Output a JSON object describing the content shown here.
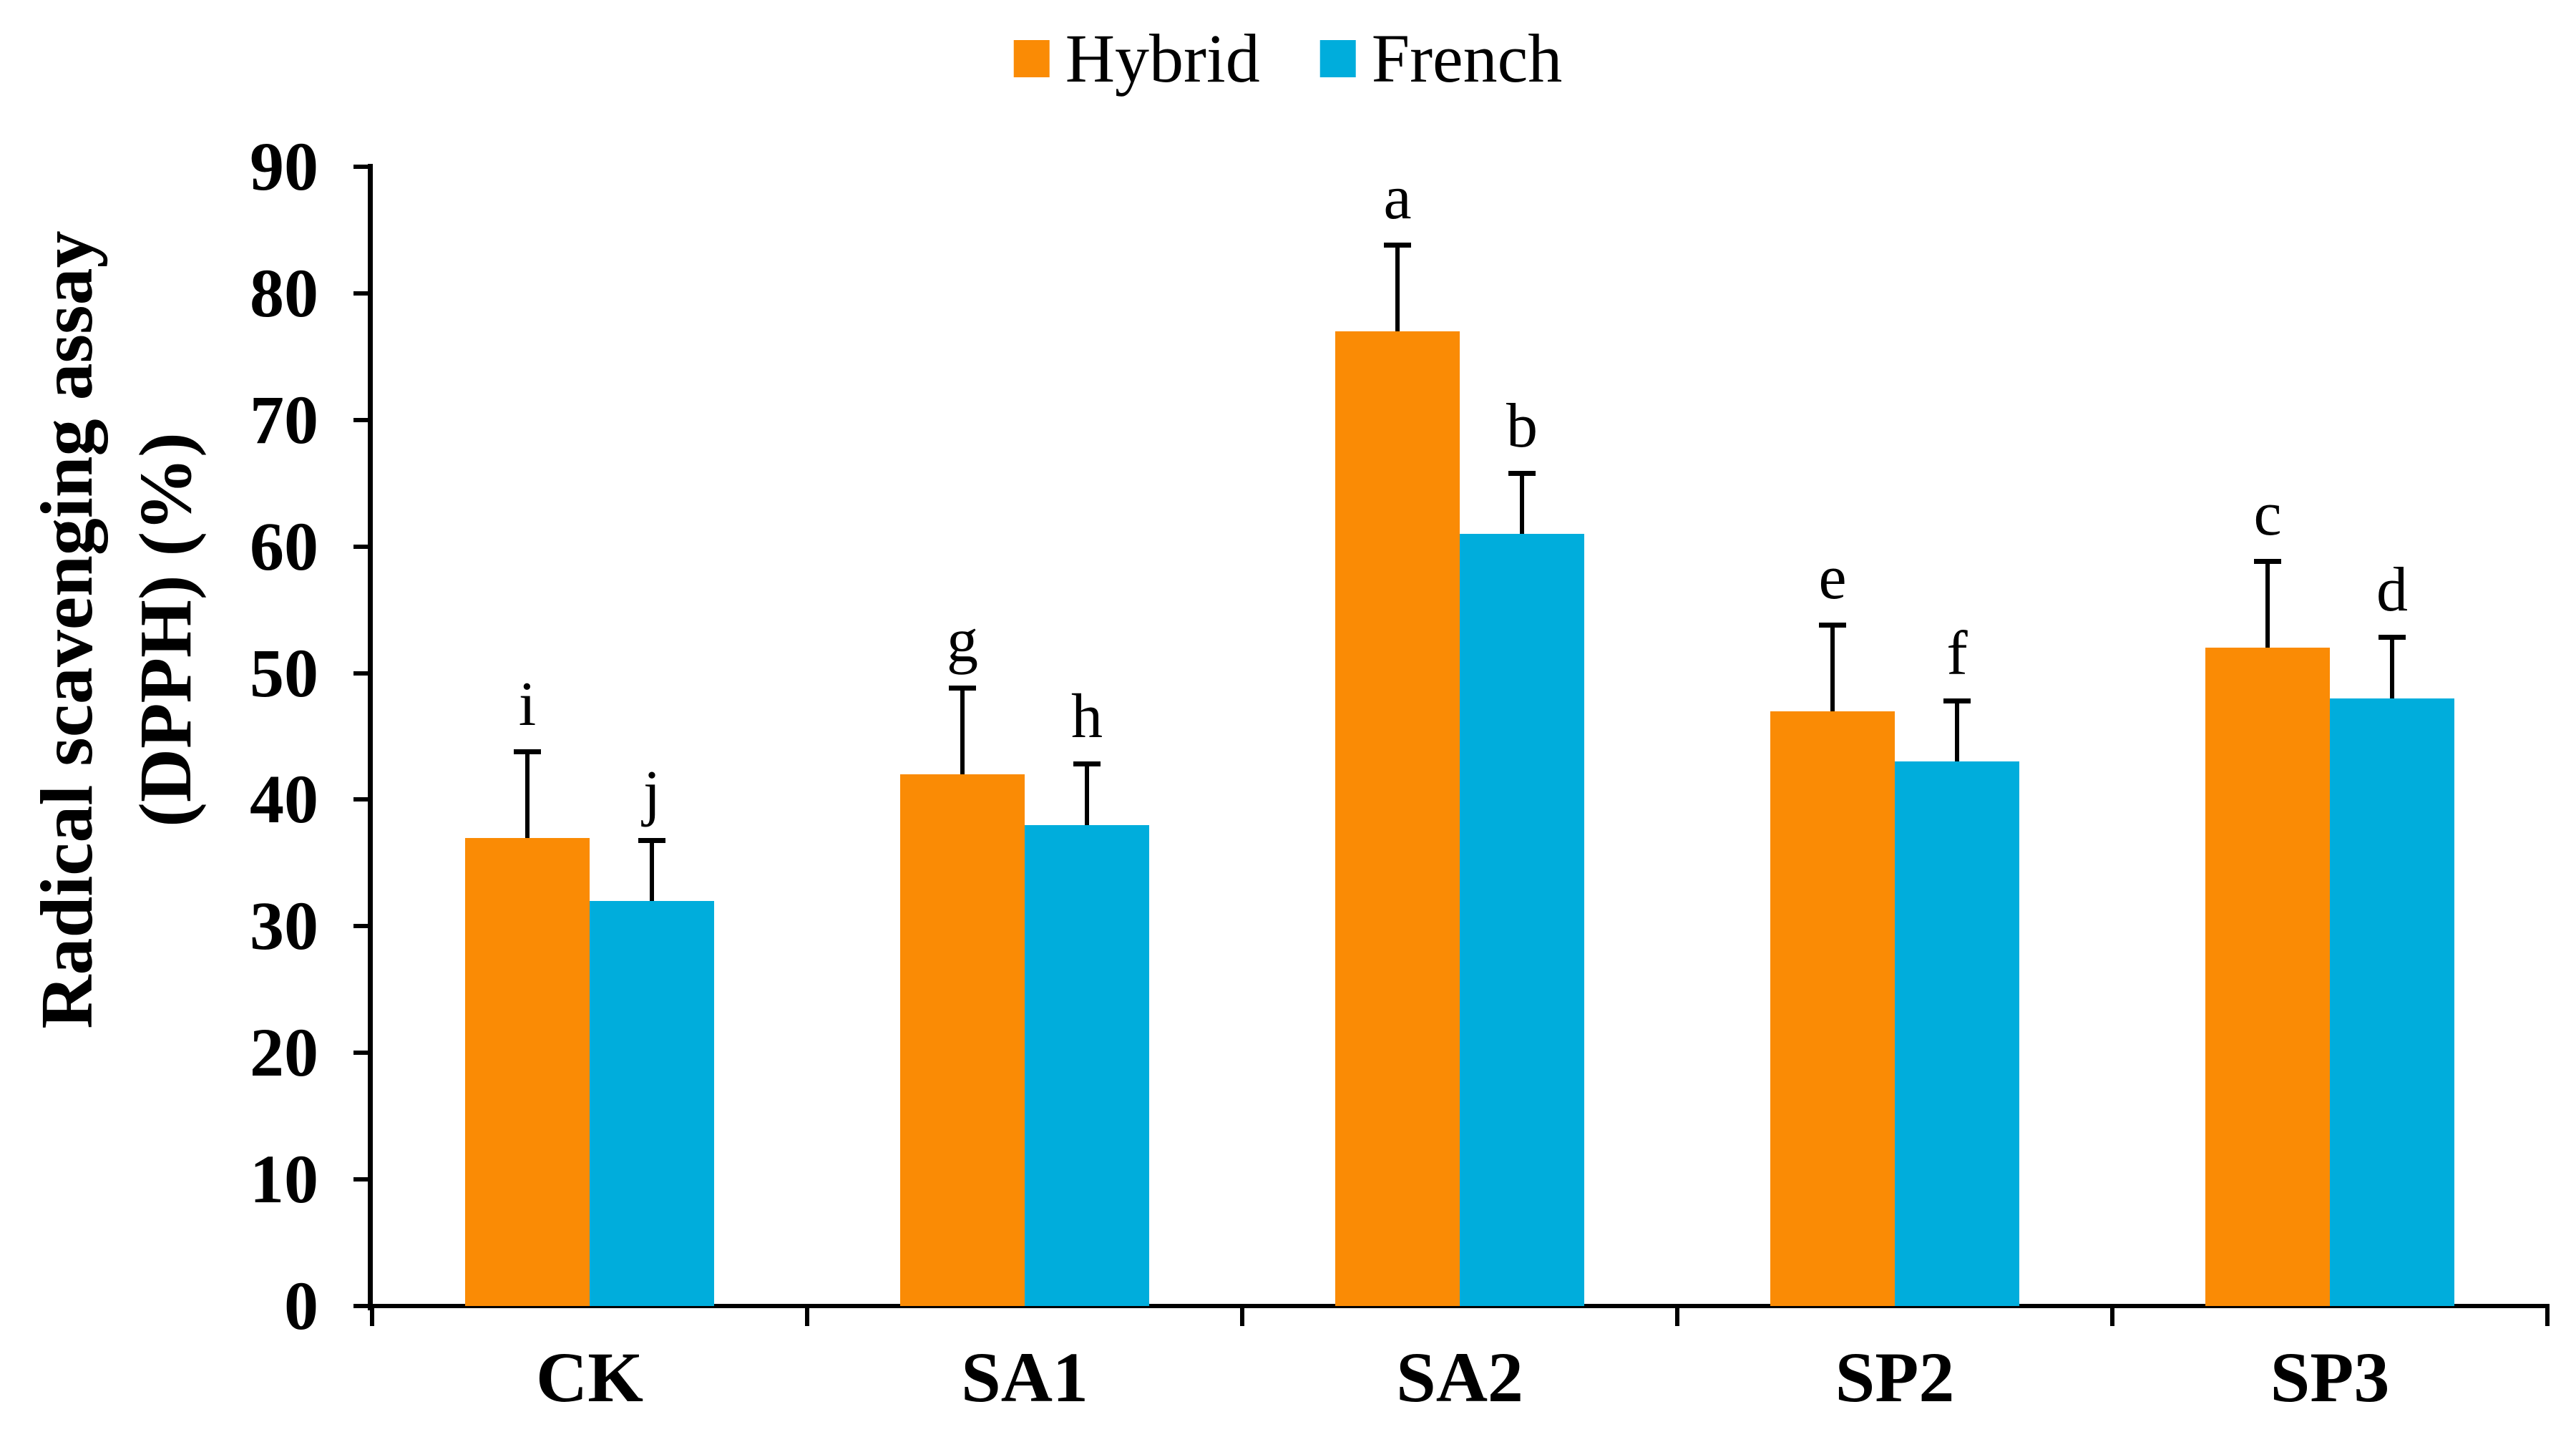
{
  "chart_data": {
    "type": "bar",
    "title": "",
    "ylabel_line1": "Radical scavenging assay",
    "ylabel_line2": "(DPPH) (%)",
    "xlabel": "",
    "categories": [
      "CK",
      "SA1",
      "SA2",
      "SP2",
      "SP3"
    ],
    "series": [
      {
        "name": "Hybrid",
        "color": "#FA8B05",
        "values": [
          37,
          42,
          77,
          47,
          52
        ],
        "errors_plus": [
          7,
          7,
          7,
          7,
          7
        ],
        "sig_letters": [
          "i",
          "g",
          "a",
          "e",
          "c"
        ]
      },
      {
        "name": "French",
        "color": "#00ADDC",
        "values": [
          32,
          38,
          61,
          43,
          48
        ],
        "errors_plus": [
          5,
          5,
          5,
          5,
          5
        ],
        "sig_letters": [
          "j",
          "h",
          "b",
          "f",
          "d"
        ]
      }
    ],
    "ylim": [
      0,
      90
    ],
    "yticks": [
      0,
      10,
      20,
      30,
      40,
      50,
      60,
      70,
      80,
      90
    ],
    "grid": false,
    "legend_position": "top",
    "axis_color": "#000000",
    "error_bar_color": "#000000",
    "background": "#ffffff"
  }
}
